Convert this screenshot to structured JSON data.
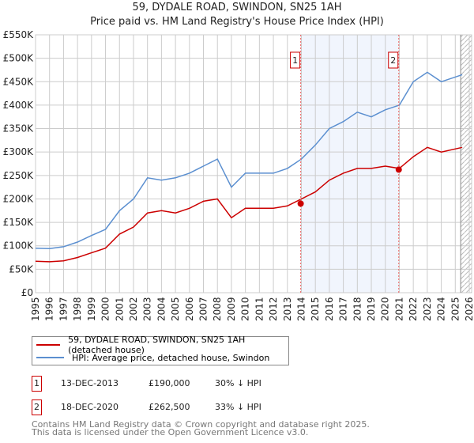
{
  "chart_data": {
    "type": "line",
    "title": "59, DYDALE ROAD, SWINDON, SN25 1AH",
    "subtitle": "Price paid vs. HM Land Registry's House Price Index (HPI)",
    "xlim": [
      1995,
      2026
    ],
    "ylim": [
      0,
      550000
    ],
    "x_ticks": [
      "1995",
      "1996",
      "1997",
      "1998",
      "1999",
      "2000",
      "2001",
      "2002",
      "2003",
      "2004",
      "2005",
      "2006",
      "2007",
      "2008",
      "2009",
      "2010",
      "2011",
      "2012",
      "2013",
      "2014",
      "2015",
      "2016",
      "2017",
      "2018",
      "2019",
      "2020",
      "2021",
      "2022",
      "2023",
      "2024",
      "2025",
      "2026"
    ],
    "y_ticks": [
      "£0",
      "£50K",
      "£100K",
      "£150K",
      "£200K",
      "£250K",
      "£300K",
      "£350K",
      "£400K",
      "£450K",
      "£500K",
      "£550K"
    ],
    "grid": true,
    "x": [
      1995,
      1996,
      1997,
      1998,
      1999,
      2000,
      2001,
      2002,
      2003,
      2004,
      2005,
      2006,
      2007,
      2008,
      2009,
      2010,
      2011,
      2012,
      2013,
      2014,
      2015,
      2016,
      2017,
      2018,
      2019,
      2020,
      2021,
      2022,
      2023,
      2024,
      2025.5
    ],
    "series": [
      {
        "name": "59, DYDALE ROAD, SWINDON, SN25 1AH (detached house)",
        "color": "#cc0000",
        "values": [
          67000,
          66000,
          68000,
          75000,
          85000,
          95000,
          125000,
          140000,
          170000,
          175000,
          170000,
          180000,
          195000,
          200000,
          160000,
          180000,
          180000,
          180000,
          185000,
          200000,
          215000,
          240000,
          255000,
          265000,
          265000,
          270000,
          265000,
          290000,
          310000,
          300000,
          310000
        ]
      },
      {
        "name": "HPI: Average price, detached house, Swindon",
        "color": "#5b8fd0",
        "values": [
          95000,
          94000,
          98000,
          108000,
          122000,
          135000,
          175000,
          200000,
          245000,
          240000,
          245000,
          255000,
          270000,
          285000,
          225000,
          255000,
          255000,
          255000,
          265000,
          285000,
          315000,
          350000,
          365000,
          385000,
          375000,
          390000,
          400000,
          450000,
          470000,
          450000,
          465000
        ]
      }
    ],
    "sales": [
      {
        "label": "1",
        "x": 2013.95,
        "date": "13-DEC-2013",
        "price_value": 190000,
        "price": "£190,000",
        "hpi": "30% ↓ HPI"
      },
      {
        "label": "2",
        "x": 2020.96,
        "date": "18-DEC-2020",
        "price_value": 262500,
        "price": "£262,500",
        "hpi": "33% ↓ HPI"
      }
    ],
    "shaded_range": [
      2013.95,
      2020.96
    ],
    "forecast_start": 2025.5,
    "legend_position": "below"
  },
  "footer": [
    "Contains HM Land Registry data © Crown copyright and database right 2025.",
    "This data is licensed under the Open Government Licence v3.0."
  ]
}
